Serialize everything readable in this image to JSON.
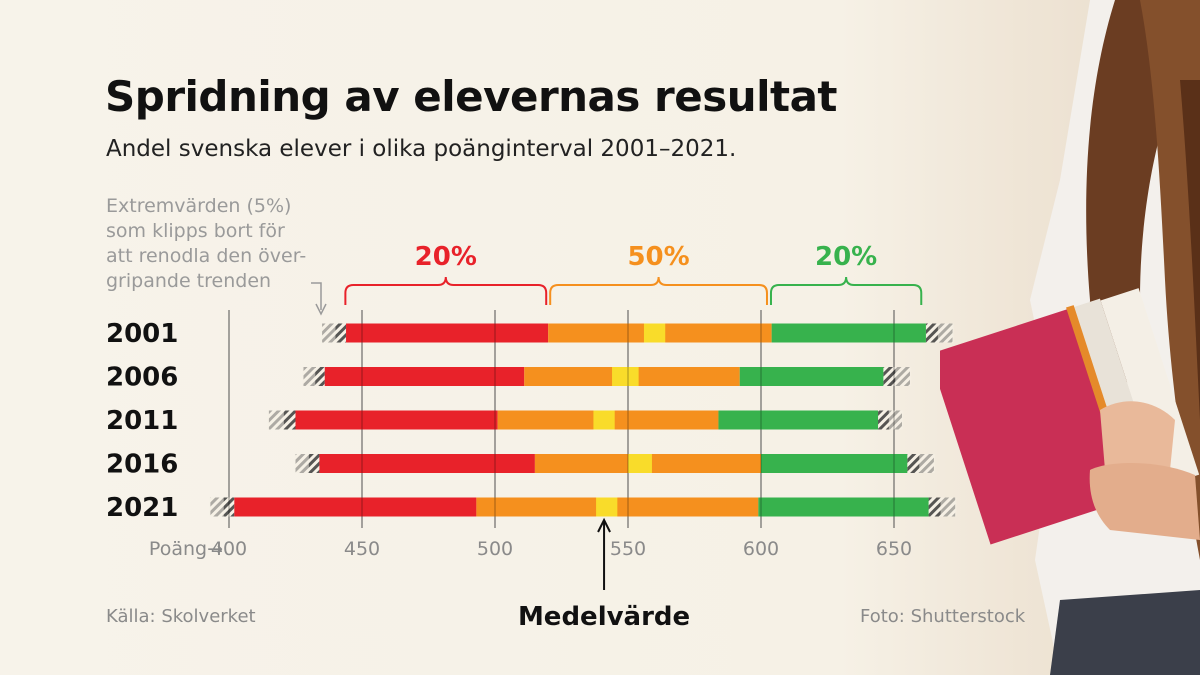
{
  "title": "Spridning av elevernas resultat",
  "subtitle": "Andel svenska elever i olika poänginterval 2001–2021.",
  "note": "Extremvärden (5%)\nsom klipps bort för\natt renodla den över-\ngripande trenden",
  "source": "Källa: Skolverket",
  "photo_credit": "Foto: Shutterstock",
  "colors": {
    "low": "#e8222a",
    "mid": "#f5901e",
    "mean": "#f9dc2a",
    "high": "#37b24d",
    "axis_text": "#8a8a8a",
    "grid": "#7a7a7a"
  },
  "chart_data": {
    "type": "bar",
    "orientation": "horizontal-range",
    "xlabel": "Poäng",
    "xlabel_arrow": "→",
    "xlim": [
      400,
      655
    ],
    "xticks": [
      400,
      450,
      500,
      550,
      600,
      650
    ],
    "grid": true,
    "brackets": [
      {
        "label": "20%",
        "color": "#e8222a",
        "from": 443,
        "to": 520
      },
      {
        "label": "50%",
        "color": "#f5901e",
        "from": 520,
        "to": 603
      },
      {
        "label": "20%",
        "color": "#37b24d",
        "from": 603,
        "to": 661
      }
    ],
    "mean_label": "Medelvärde",
    "rows": [
      {
        "year": "2001",
        "clip_low": 435,
        "p5": 444,
        "p25": 520,
        "mean_low": 556,
        "mean_high": 564,
        "p75": 604,
        "p95": 662,
        "clip_high": 672
      },
      {
        "year": "2006",
        "clip_low": 428,
        "p5": 436,
        "p25": 511,
        "mean_low": 544,
        "mean_high": 554,
        "p75": 592,
        "p95": 646,
        "clip_high": 656
      },
      {
        "year": "2011",
        "clip_low": 415,
        "p5": 425,
        "p25": 501,
        "mean_low": 537,
        "mean_high": 545,
        "p75": 584,
        "p95": 644,
        "clip_high": 653
      },
      {
        "year": "2016",
        "clip_low": 425,
        "p5": 434,
        "p25": 515,
        "mean_low": 550,
        "mean_high": 559,
        "p75": 600,
        "p95": 655,
        "clip_high": 665
      },
      {
        "year": "2021",
        "clip_low": 393,
        "p5": 402,
        "p25": 493,
        "mean_low": 538,
        "mean_high": 546,
        "p75": 599,
        "p95": 663,
        "clip_high": 673
      }
    ]
  }
}
